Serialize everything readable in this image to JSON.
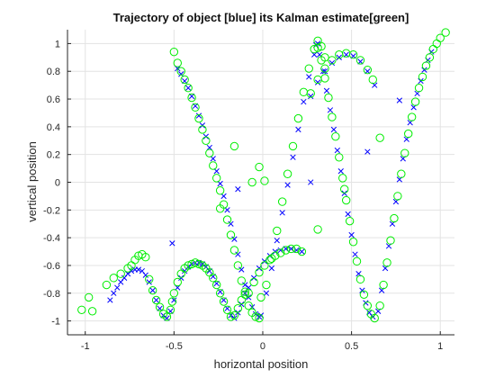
{
  "chart_data": {
    "type": "scatter",
    "title": "Trajectory of object [blue] its Kalman estimate[green]",
    "xlabel": "horizontal position",
    "ylabel": "vertical position",
    "xlim": [
      -1.1,
      1.08
    ],
    "ylim": [
      -1.1,
      1.1
    ],
    "xticks": [
      -1,
      -0.5,
      0,
      0.5,
      1
    ],
    "xtick_labels": [
      "-1",
      "-0.5",
      "0",
      "0.5",
      "1"
    ],
    "yticks": [
      -1,
      -0.8,
      -0.6,
      -0.4,
      -0.2,
      0,
      0.2,
      0.4,
      0.6,
      0.8,
      1
    ],
    "ytick_labels": [
      "-1",
      "-0.8",
      "-0.6",
      "-0.4",
      "-0.2",
      "0",
      "0.2",
      "0.4",
      "0.6",
      "0.8",
      "1"
    ],
    "grid": true,
    "colors": {
      "true_trajectory": "#0000ff",
      "estimate": "#00ee00"
    },
    "series": [
      {
        "marker": "x",
        "color": "#0000ff",
        "x": [
          -0.86,
          -0.84,
          -0.82,
          -0.8,
          -0.78,
          -0.76,
          -0.74,
          -0.72,
          -0.7,
          -0.68,
          -0.66,
          -0.64,
          -0.62,
          -0.6,
          -0.58,
          -0.56,
          -0.54,
          -0.52,
          -0.5,
          -0.48,
          -0.46,
          -0.44,
          -0.42,
          -0.4,
          -0.38,
          -0.36,
          -0.34,
          -0.32,
          -0.3,
          -0.28,
          -0.26,
          -0.24,
          -0.22,
          -0.2,
          -0.18,
          -0.16,
          -0.14,
          -0.12,
          -0.1,
          -0.08,
          -0.05,
          -0.02,
          0.01,
          0.04,
          0.07,
          0.1,
          0.13,
          0.16,
          0.19,
          0.22,
          -0.48,
          -0.46,
          -0.44,
          -0.42,
          -0.4,
          -0.38,
          -0.36,
          -0.34,
          -0.32,
          -0.3,
          -0.28,
          -0.26,
          -0.24,
          -0.22,
          -0.2,
          -0.18,
          -0.16,
          -0.14,
          -0.12,
          -0.1,
          -0.08,
          -0.06,
          -0.04,
          -0.02,
          -0.01,
          0.02,
          0.05,
          0.08,
          0.11,
          0.14,
          0.17,
          0.2,
          0.23,
          0.26,
          0.29,
          0.31,
          0.27,
          0.31,
          0.35,
          0.39,
          0.43,
          0.47,
          0.51,
          0.55,
          0.59,
          0.63,
          0.3,
          0.32,
          0.34,
          0.36,
          0.38,
          0.4,
          0.42,
          0.44,
          0.46,
          0.48,
          0.5,
          0.52,
          0.54,
          0.56,
          0.58,
          0.6,
          0.62,
          0.65,
          0.67,
          0.69,
          0.71,
          0.73,
          0.75,
          0.77,
          0.79,
          0.81,
          0.83,
          0.85,
          0.87,
          0.89,
          0.91,
          0.93,
          0.95,
          -0.51,
          -0.14,
          0.27,
          0.59,
          0.77
        ],
        "y": [
          -0.85,
          -0.8,
          -0.76,
          -0.72,
          -0.69,
          -0.66,
          -0.64,
          -0.63,
          -0.63,
          -0.64,
          -0.67,
          -0.72,
          -0.78,
          -0.85,
          -0.91,
          -0.96,
          -0.98,
          -0.93,
          -0.85,
          -0.76,
          -0.69,
          -0.64,
          -0.61,
          -0.59,
          -0.58,
          -0.58,
          -0.59,
          -0.61,
          -0.64,
          -0.68,
          -0.73,
          -0.79,
          -0.85,
          -0.91,
          -0.96,
          -0.98,
          -0.94,
          -0.88,
          -0.8,
          -0.76,
          -0.69,
          -0.62,
          -0.57,
          -0.53,
          -0.5,
          -0.49,
          -0.48,
          -0.48,
          -0.49,
          -0.5,
          0.82,
          0.78,
          0.73,
          0.68,
          0.62,
          0.55,
          0.48,
          0.41,
          0.33,
          0.25,
          0.17,
          0.08,
          -0.01,
          -0.1,
          -0.2,
          -0.3,
          -0.41,
          -0.52,
          -0.63,
          -0.74,
          -0.83,
          -0.9,
          -0.95,
          -0.97,
          -0.96,
          -0.8,
          -0.62,
          -0.42,
          -0.22,
          -0.02,
          0.18,
          0.38,
          0.58,
          0.76,
          0.92,
          1.0,
          0.62,
          0.72,
          0.8,
          0.86,
          0.9,
          0.92,
          0.91,
          0.87,
          0.8,
          0.7,
          0.99,
          0.92,
          0.8,
          0.66,
          0.52,
          0.38,
          0.23,
          0.08,
          -0.08,
          -0.23,
          -0.38,
          -0.52,
          -0.66,
          -0.78,
          -0.87,
          -0.94,
          -0.97,
          -0.93,
          -0.78,
          -0.62,
          -0.46,
          -0.3,
          -0.14,
          0.02,
          0.17,
          0.31,
          0.43,
          0.54,
          0.64,
          0.73,
          0.81,
          0.88,
          0.94,
          -0.44,
          -0.05,
          0.0,
          0.22,
          0.59
        ]
      },
      {
        "marker": "o",
        "color": "#00ee00",
        "x": [
          -1.02,
          -0.98,
          -0.96,
          -0.88,
          -0.84,
          -0.8,
          -0.76,
          -0.74,
          -0.72,
          -0.7,
          -0.68,
          -0.66,
          -0.64,
          -0.62,
          -0.6,
          -0.58,
          -0.56,
          -0.54,
          -0.52,
          -0.51,
          -0.5,
          -0.48,
          -0.46,
          -0.44,
          -0.42,
          -0.4,
          -0.38,
          -0.36,
          -0.34,
          -0.32,
          -0.3,
          -0.28,
          -0.26,
          -0.24,
          -0.22,
          -0.2,
          -0.18,
          -0.16,
          -0.14,
          -0.12,
          -0.1,
          -0.08,
          -0.05,
          -0.02,
          0.01,
          0.04,
          0.07,
          0.1,
          0.13,
          0.16,
          0.19,
          0.22,
          -0.5,
          -0.48,
          -0.46,
          -0.44,
          -0.42,
          -0.4,
          -0.38,
          -0.36,
          -0.34,
          -0.32,
          -0.3,
          -0.28,
          -0.26,
          -0.24,
          -0.22,
          -0.2,
          -0.18,
          -0.16,
          -0.14,
          -0.12,
          -0.1,
          -0.08,
          -0.06,
          -0.04,
          -0.02,
          -0.01,
          0.02,
          0.05,
          0.08,
          0.11,
          0.14,
          0.17,
          0.2,
          0.23,
          0.26,
          0.29,
          0.31,
          0.33,
          0.35,
          0.27,
          0.31,
          0.35,
          0.39,
          0.43,
          0.47,
          0.51,
          0.55,
          0.59,
          0.62,
          0.31,
          0.33,
          0.35,
          0.37,
          0.39,
          0.41,
          0.43,
          0.45,
          0.47,
          0.49,
          0.51,
          0.53,
          0.55,
          0.57,
          0.59,
          0.61,
          0.63,
          0.66,
          0.68,
          0.7,
          0.72,
          0.74,
          0.76,
          0.78,
          0.8,
          0.82,
          0.84,
          0.86,
          0.88,
          0.9,
          0.92,
          0.94,
          0.96,
          0.98,
          1.0,
          1.03,
          -0.16,
          -0.24,
          -0.06,
          0.01,
          -0.02,
          0.31,
          0.46,
          0.66
        ],
        "y": [
          -0.92,
          -0.83,
          -0.93,
          -0.74,
          -0.69,
          -0.66,
          -0.62,
          -0.6,
          -0.56,
          -0.53,
          -0.52,
          -0.54,
          -0.7,
          -0.78,
          -0.85,
          -0.9,
          -0.95,
          -0.97,
          -0.92,
          -0.86,
          -0.8,
          -0.72,
          -0.66,
          -0.62,
          -0.6,
          -0.59,
          -0.58,
          -0.59,
          -0.6,
          -0.62,
          -0.65,
          -0.69,
          -0.74,
          -0.8,
          -0.86,
          -0.92,
          -0.97,
          -0.96,
          -0.91,
          -0.85,
          -0.79,
          -0.8,
          -0.72,
          -0.65,
          -0.6,
          -0.56,
          -0.53,
          -0.51,
          -0.49,
          -0.48,
          -0.48,
          -0.5,
          0.94,
          0.86,
          0.8,
          0.74,
          0.68,
          0.61,
          0.54,
          0.46,
          0.38,
          0.3,
          0.21,
          0.12,
          0.03,
          -0.06,
          -0.16,
          -0.27,
          -0.38,
          -0.49,
          -0.6,
          -0.71,
          -0.81,
          -0.89,
          -0.94,
          -0.97,
          -0.98,
          -0.83,
          -0.74,
          -0.55,
          -0.35,
          -0.14,
          0.06,
          0.26,
          0.46,
          0.65,
          0.82,
          0.96,
          1.02,
          0.98,
          0.9,
          0.64,
          0.74,
          0.82,
          0.88,
          0.92,
          0.93,
          0.92,
          0.88,
          0.81,
          0.74,
          0.97,
          0.88,
          0.75,
          0.61,
          0.47,
          0.33,
          0.18,
          0.03,
          -0.13,
          -0.28,
          -0.43,
          -0.57,
          -0.7,
          -0.81,
          -0.89,
          -0.95,
          -0.98,
          -0.89,
          -0.74,
          -0.58,
          -0.42,
          -0.26,
          -0.1,
          0.06,
          0.21,
          0.35,
          0.47,
          0.58,
          0.68,
          0.76,
          0.84,
          0.9,
          0.96,
          1.0,
          1.04,
          1.08,
          0.26,
          -0.19,
          0.0,
          0.01,
          0.11,
          -0.34,
          -0.05,
          0.32
        ]
      }
    ]
  }
}
